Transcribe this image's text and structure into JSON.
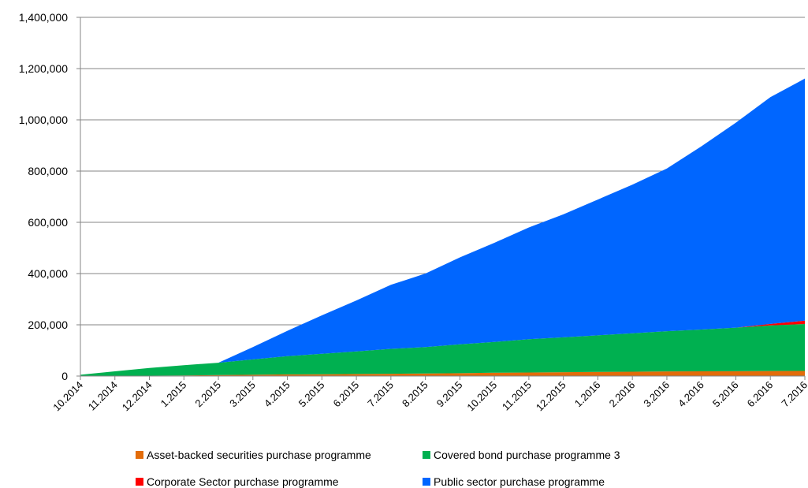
{
  "chart_data": {
    "type": "area",
    "stacked": true,
    "x": [
      "10.2014",
      "11.2014",
      "12.2014",
      "1.2015",
      "2.2015",
      "3.2015",
      "4.2015",
      "5.2015",
      "6.2015",
      "7.2015",
      "8.2015",
      "9.2015",
      "10.2015",
      "11.2015",
      "12.2015",
      "1.2016",
      "2.2016",
      "3.2016",
      "4.2016",
      "5.2016",
      "6.2016",
      "7.2016"
    ],
    "ylim": [
      0,
      1400000
    ],
    "yticks": [
      0,
      200000,
      400000,
      600000,
      800000,
      1000000,
      1200000,
      1400000
    ],
    "ytick_labels": [
      "0",
      "200,000",
      "400,000",
      "600,000",
      "800,000",
      "1,000,000",
      "1,200,000",
      "1,400,000"
    ],
    "grid": true,
    "legend_position": "bottom",
    "series": [
      {
        "name": "Asset-backed securities purchase programme",
        "color": "#E36C0A",
        "values": [
          0,
          500,
          1500,
          2500,
          4000,
          5000,
          6500,
          7000,
          8000,
          9000,
          10000,
          11000,
          13000,
          14000,
          15000,
          16000,
          17000,
          18000,
          18500,
          19000,
          19500,
          20000
        ]
      },
      {
        "name": "Covered bond purchase programme 3",
        "color": "#00B050",
        "values": [
          5000,
          18000,
          30000,
          40000,
          48000,
          60000,
          71000,
          80000,
          88000,
          97000,
          103000,
          113000,
          120000,
          130000,
          136000,
          143000,
          150000,
          157000,
          163000,
          170000,
          178000,
          183000
        ]
      },
      {
        "name": "Corporate Sector purchase programme",
        "color": "#FF0000",
        "values": [
          0,
          0,
          0,
          0,
          0,
          0,
          0,
          0,
          0,
          0,
          0,
          0,
          0,
          0,
          0,
          0,
          0,
          0,
          0,
          0,
          6000,
          13000
        ]
      },
      {
        "name": "Public sector purchase programme",
        "color": "#0066FF",
        "values": [
          0,
          0,
          0,
          0,
          0,
          48000,
          99000,
          150000,
          199000,
          250000,
          287000,
          339000,
          387000,
          436000,
          480000,
          530000,
          580000,
          635000,
          715000,
          800000,
          885000,
          945000
        ]
      }
    ]
  }
}
